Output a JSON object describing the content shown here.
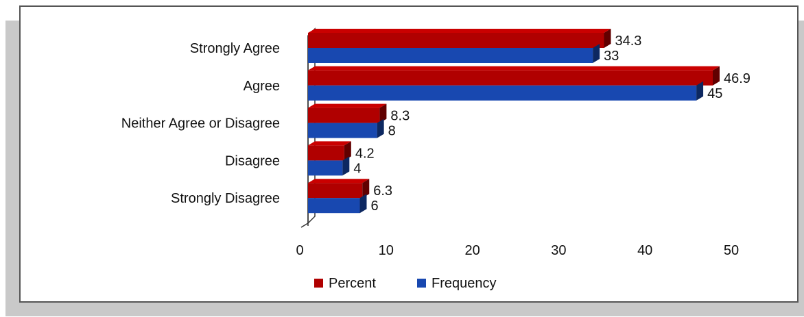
{
  "chart_data": {
    "type": "bar",
    "orientation": "horizontal",
    "style": "3d",
    "categories": [
      "Strongly Agree",
      "Agree",
      "Neither Agree or Disagree",
      "Disagree",
      "Strongly Disagree"
    ],
    "series": [
      {
        "name": "Percent",
        "values": [
          34.3,
          46.9,
          8.3,
          4.2,
          6.3
        ],
        "color": "#b00000",
        "value_labels": [
          "34.3",
          "46.9",
          "8.3",
          "4.2",
          "6.3"
        ]
      },
      {
        "name": "Frequency",
        "values": [
          33,
          45,
          8,
          4,
          6
        ],
        "color": "#1848b0",
        "value_labels": [
          "33",
          "45",
          "8",
          "4",
          "6"
        ]
      }
    ],
    "xlim": [
      0,
      50
    ],
    "xticks": [
      "0",
      "10",
      "20",
      "30",
      "40",
      "50"
    ],
    "grid": false,
    "legend_position": "bottom"
  }
}
